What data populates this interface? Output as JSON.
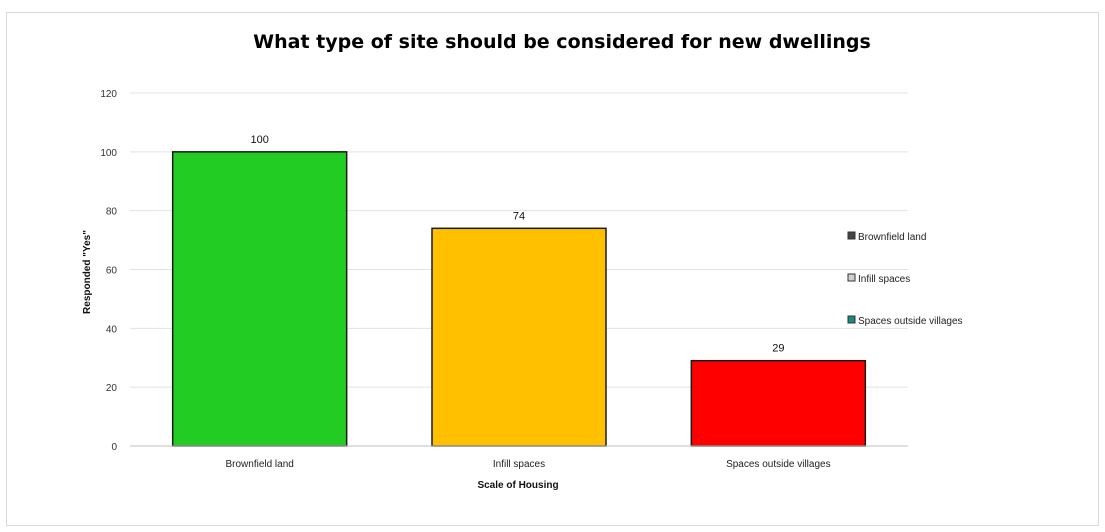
{
  "chart_data": {
    "type": "bar",
    "title": "What type of site should be considered for new dwellings",
    "xlabel": "Scale of Housing",
    "ylabel": "Responded \"Yes\"",
    "categories": [
      "Brownfield land",
      "Infill spaces",
      "Spaces outside villages"
    ],
    "values": [
      100,
      74,
      29
    ],
    "data_labels": [
      "100",
      "74",
      "29"
    ],
    "ylim": [
      0,
      120
    ],
    "yticks": [
      0,
      20,
      40,
      60,
      80,
      100,
      120
    ],
    "ytick_labels": [
      "0",
      "20",
      "40",
      "60",
      "80",
      "100",
      "120"
    ],
    "colors": [
      "#22cc22",
      "#ffc000",
      "#ff0000"
    ],
    "grid": true,
    "legend": {
      "position": "right",
      "entries": [
        "Brownfield land",
        "Infill spaces",
        "Spaces outside villages"
      ],
      "swatch_colors": [
        "#444444",
        "#d0d0d0",
        "#1a8a7a"
      ]
    }
  }
}
